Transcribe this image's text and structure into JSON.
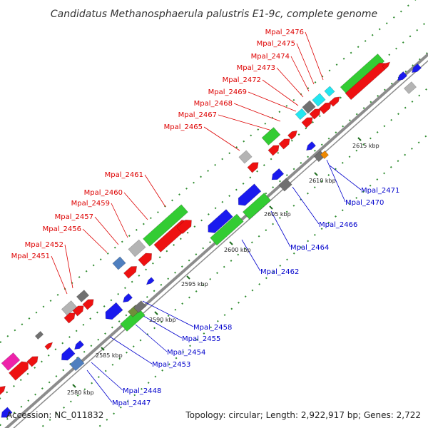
{
  "title": "Candidatus Methanosphaerula palustris E1-9c, complete genome",
  "footer": {
    "accession": "Accession: NC_011832",
    "summary": "Topology: circular; Length: 2,922,917 bp; Genes: 2,722"
  },
  "colors": {
    "backbone": "#8c8c8c",
    "dots": "#2e8b2e",
    "label_top": "#dd0000",
    "label_bottom": "#0000cc",
    "leader_top": "#dd0000",
    "leader_bottom": "#0000cc"
  },
  "scale_ticks": [
    "2580 kbp",
    "2585 kbp",
    "2590 kbp",
    "2595 kbp",
    "2600 kbp",
    "2605 kbp",
    "2610 kbp",
    "2615 kbp"
  ],
  "labels_top": [
    "Mpal_2476",
    "Mpal_2475",
    "Mpal_2474",
    "Mpal_2473",
    "Mpal_2472",
    "Mpal_2469",
    "Mpal_2468",
    "Mpal_2467",
    "Mpal_2465",
    "Mpal_2461",
    "Mpal_2460",
    "Mpal_2459",
    "Mpal_2457",
    "Mpal_2456",
    "Mpal_2452",
    "Mpal_2451"
  ],
  "labels_bottom": [
    "Mpal_2471",
    "Mpal_2470",
    "Mpal_2466",
    "Mpal_2464",
    "Mpal_2462",
    "Mpal_2458",
    "Mpal_2455",
    "Mpal_2454",
    "Mpal_2453",
    "Mpal_2448",
    "Mpal_2447"
  ]
}
